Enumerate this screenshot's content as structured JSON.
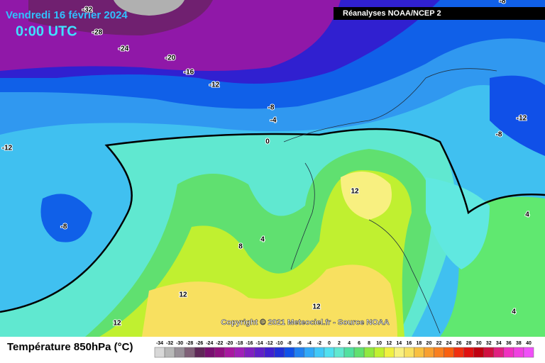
{
  "header": {
    "date": "Vendredi 16 février 2024",
    "time": "0:00 UTC",
    "source_box": "Réanalyses NOAA/NCEP 2"
  },
  "contour_labels": [
    "-32",
    "-28",
    "-24",
    "-20",
    "-16",
    "-12",
    "-8",
    "-4",
    "0",
    "-12",
    "-8",
    "4",
    "8",
    "12",
    "12",
    "12",
    "12",
    "-8",
    "-12",
    "4",
    "4",
    "-8"
  ],
  "copyright": "Copyright © 2021 Meteociel.fr - Source NOAA",
  "legend": {
    "title": "Température 850hPa (°C)",
    "ticks": [
      -34,
      -32,
      -30,
      -28,
      -26,
      -24,
      -22,
      -20,
      -18,
      -16,
      -14,
      -12,
      -10,
      -8,
      -6,
      -4,
      -2,
      0,
      2,
      4,
      6,
      8,
      10,
      12,
      14,
      16,
      18,
      20,
      22,
      24,
      26,
      28,
      30,
      32,
      34,
      36,
      38,
      40
    ],
    "colors": [
      "#d8d8d8",
      "#b8b8b8",
      "#989098",
      "#806078",
      "#602858",
      "#781070",
      "#901080",
      "#a818a0",
      "#a020b8",
      "#8020c0",
      "#6020c8",
      "#4020d0",
      "#2030d8",
      "#1050e8",
      "#2080f0",
      "#30a8f8",
      "#40c8f8",
      "#50e0f0",
      "#60e8d0",
      "#50e0a0",
      "#60e070",
      "#90e840",
      "#c0f030",
      "#f0f040",
      "#f8f080",
      "#f8e060",
      "#f8c040",
      "#f8a030",
      "#f88020",
      "#f86010",
      "#f03010",
      "#e01010",
      "#c00010",
      "#d01040",
      "#e02080",
      "#f030c0",
      "#f040e0",
      "#f050f8"
    ]
  }
}
